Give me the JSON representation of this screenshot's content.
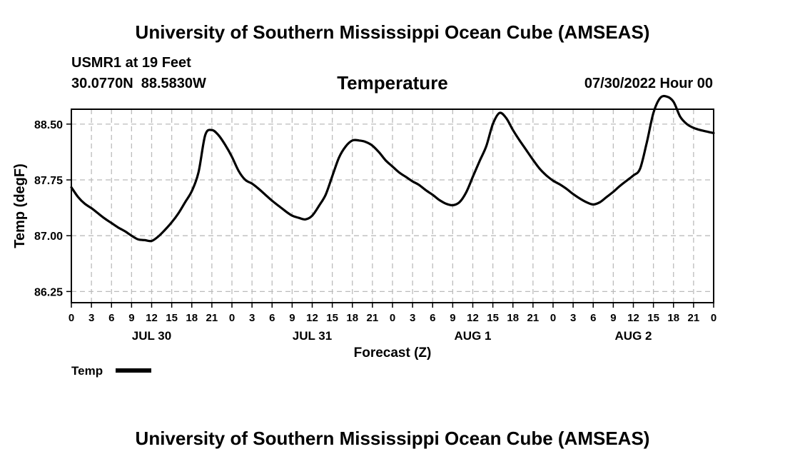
{
  "header": {
    "title": "University of Southern Mississippi Ocean Cube (AMSEAS)",
    "station": "USMR1 at 19 Feet",
    "lat": "30.0770N",
    "lon": "88.5830W",
    "date_label": "07/30/2022 Hour 00"
  },
  "footer": {
    "title": "University of Southern Mississippi Ocean Cube (AMSEAS)"
  },
  "chart_data": {
    "type": "line",
    "title": "Temperature",
    "xlabel": "Forecast (Z)",
    "ylabel": "Temp (degF)",
    "ylim": [
      86.1,
      88.7
    ],
    "yticks": [
      "86.25",
      "87.00",
      "87.75",
      "88.50"
    ],
    "xlim_hours": [
      0,
      96
    ],
    "xticks": [
      "0",
      "3",
      "6",
      "9",
      "12",
      "15",
      "18",
      "21",
      "0",
      "3",
      "6",
      "9",
      "12",
      "15",
      "18",
      "21",
      "0",
      "3",
      "6",
      "9",
      "12",
      "15",
      "18",
      "21",
      "0",
      "3",
      "6",
      "9",
      "12",
      "15",
      "18",
      "21",
      "0"
    ],
    "day_labels": [
      {
        "label": "JUL 30",
        "hour": 12
      },
      {
        "label": "JUL 31",
        "hour": 36
      },
      {
        "label": "AUG 1",
        "hour": 60
      },
      {
        "label": "AUG 2",
        "hour": 84
      }
    ],
    "grid": true,
    "legend_position": "bottom-left",
    "series": [
      {
        "name": "Temp",
        "color": "#000000",
        "x": [
          0,
          1,
          2,
          3,
          4,
          5,
          6,
          7,
          8,
          9,
          10,
          11,
          12,
          13,
          14,
          15,
          16,
          17,
          18,
          19,
          20,
          21,
          22,
          23,
          24,
          25,
          26,
          27,
          28,
          29,
          30,
          31,
          32,
          33,
          34,
          35,
          36,
          37,
          38,
          39,
          40,
          41,
          42,
          43,
          44,
          45,
          46,
          47,
          48,
          49,
          50,
          51,
          52,
          53,
          54,
          55,
          56,
          57,
          58,
          59,
          60,
          61,
          62,
          63,
          64,
          65,
          66,
          67,
          68,
          69,
          70,
          71,
          72,
          73,
          74,
          75,
          76,
          77,
          78,
          79,
          80,
          81,
          82,
          83,
          84,
          85,
          86,
          87,
          88,
          89,
          90,
          91,
          92,
          93,
          94,
          95,
          96
        ],
        "values": [
          87.65,
          87.52,
          87.43,
          87.37,
          87.3,
          87.23,
          87.17,
          87.11,
          87.06,
          87.0,
          86.95,
          86.94,
          86.93,
          86.99,
          87.08,
          87.18,
          87.3,
          87.45,
          87.6,
          87.85,
          88.35,
          88.42,
          88.35,
          88.22,
          88.06,
          87.87,
          87.75,
          87.7,
          87.63,
          87.55,
          87.47,
          87.4,
          87.33,
          87.27,
          87.24,
          87.22,
          87.27,
          87.4,
          87.55,
          87.8,
          88.05,
          88.2,
          88.28,
          88.28,
          88.26,
          88.21,
          88.12,
          88.01,
          87.93,
          87.85,
          87.79,
          87.73,
          87.68,
          87.61,
          87.55,
          87.48,
          87.43,
          87.41,
          87.45,
          87.58,
          87.79,
          88.0,
          88.2,
          88.5,
          88.65,
          88.58,
          88.42,
          88.28,
          88.15,
          88.02,
          87.9,
          87.81,
          87.74,
          87.69,
          87.63,
          87.56,
          87.5,
          87.45,
          87.42,
          87.45,
          87.52,
          87.59,
          87.67,
          87.74,
          87.81,
          87.9,
          88.25,
          88.65,
          88.85,
          88.87,
          88.8,
          88.6,
          88.5,
          88.45,
          88.42,
          88.4,
          88.38
        ]
      }
    ]
  }
}
